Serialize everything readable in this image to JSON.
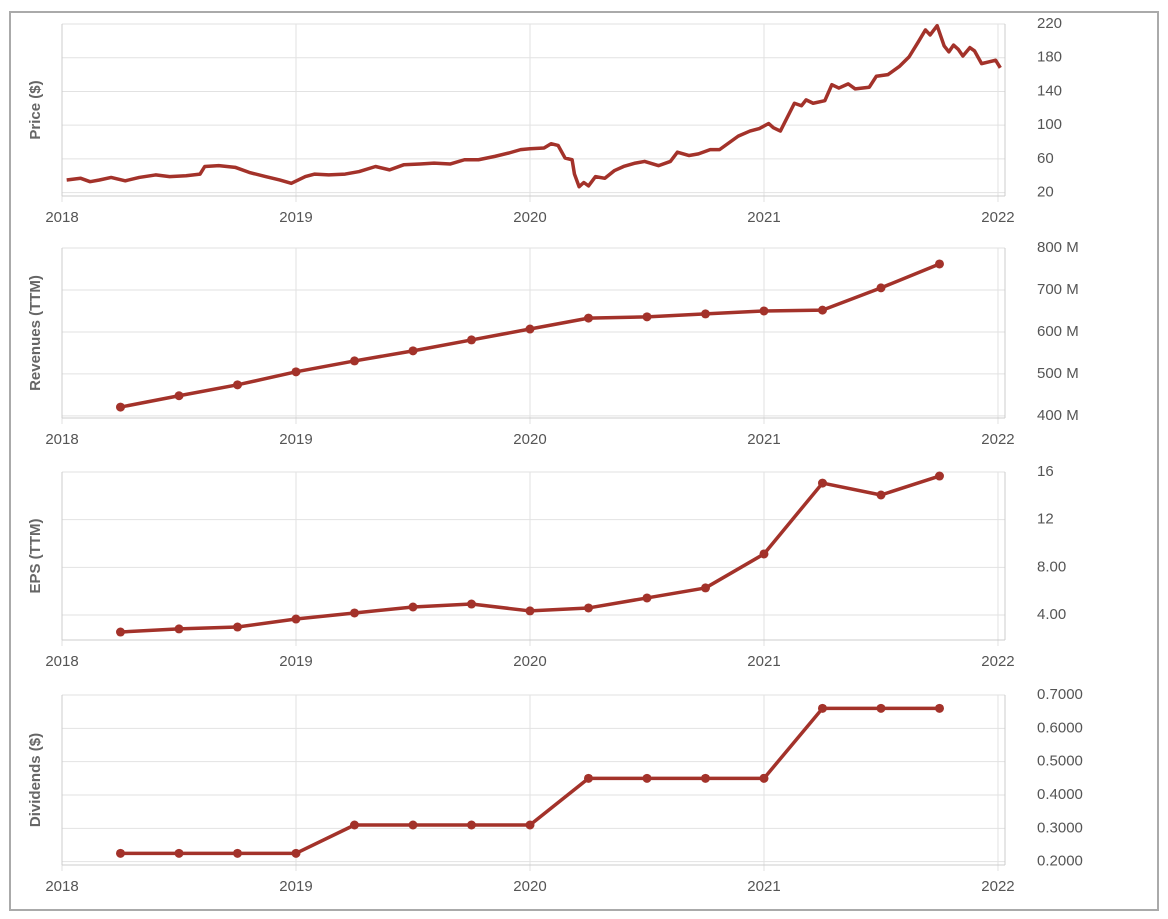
{
  "chart_data": [
    {
      "type": "line",
      "y_label": "Price ($)",
      "color": "#a3322a",
      "markers": false,
      "grid": true,
      "xlim": [
        2018,
        2022.03
      ],
      "xticks": [
        2018,
        2019,
        2020,
        2021,
        2022
      ],
      "ylim": [
        16,
        220
      ],
      "yticks": [
        20,
        60,
        100,
        140,
        180,
        220
      ],
      "x": [
        2018.02,
        2018.08,
        2018.12,
        2018.16,
        2018.21,
        2018.27,
        2018.33,
        2018.4,
        2018.46,
        2018.53,
        2018.59,
        2018.61,
        2018.67,
        2018.74,
        2018.8,
        2018.87,
        2018.93,
        2018.98,
        2019.04,
        2019.08,
        2019.14,
        2019.21,
        2019.27,
        2019.34,
        2019.4,
        2019.46,
        2019.53,
        2019.59,
        2019.66,
        2019.72,
        2019.78,
        2019.85,
        2019.91,
        2019.96,
        2020.0,
        2020.06,
        2020.09,
        2020.12,
        2020.15,
        2020.18,
        2020.19,
        2020.21,
        2020.23,
        2020.25,
        2020.28,
        2020.32,
        2020.36,
        2020.4,
        2020.45,
        2020.49,
        2020.55,
        2020.6,
        2020.63,
        2020.68,
        2020.72,
        2020.77,
        2020.81,
        2020.85,
        2020.89,
        2020.94,
        2020.98,
        2021.02,
        2021.04,
        2021.07,
        2021.13,
        2021.16,
        2021.18,
        2021.21,
        2021.26,
        2021.29,
        2021.32,
        2021.36,
        2021.39,
        2021.45,
        2021.48,
        2021.53,
        2021.58,
        2021.62,
        2021.66,
        2021.69,
        2021.71,
        2021.74,
        2021.77,
        2021.79,
        2021.81,
        2021.83,
        2021.85,
        2021.88,
        2021.9,
        2021.93,
        2021.96,
        2021.99,
        2022.01
      ],
      "values": [
        35,
        37,
        33,
        35,
        38,
        34,
        38,
        41,
        39,
        40,
        42,
        51,
        52,
        50,
        44,
        39,
        35,
        31,
        39,
        42,
        41,
        42,
        45,
        51,
        47,
        53,
        54,
        55,
        54,
        59,
        59,
        63,
        67,
        71,
        72,
        73,
        78,
        76,
        61,
        59,
        42,
        27,
        32,
        28,
        39,
        37,
        46,
        51,
        55,
        57,
        52,
        57,
        68,
        64,
        66,
        71,
        71,
        79,
        87,
        93,
        96,
        102,
        97,
        93,
        126,
        123,
        130,
        126,
        129,
        148,
        144,
        149,
        143,
        145,
        158,
        160,
        170,
        181,
        199,
        213,
        207,
        218,
        194,
        187,
        195,
        190,
        182,
        192,
        188,
        173,
        175,
        177,
        168
      ]
    },
    {
      "type": "line",
      "y_label": "Revenues (TTM)",
      "color": "#a3322a",
      "markers": true,
      "grid": true,
      "xlim": [
        2018,
        2022.03
      ],
      "xticks": [
        2018,
        2019,
        2020,
        2021,
        2022
      ],
      "ylim": [
        395,
        800
      ],
      "yticks": [
        {
          "value": 400,
          "label": "400 M"
        },
        {
          "value": 500,
          "label": "500 M"
        },
        {
          "value": 600,
          "label": "600 M"
        },
        {
          "value": 700,
          "label": "700 M"
        },
        {
          "value": 800,
          "label": "800 M"
        }
      ],
      "x": [
        2018.25,
        2018.5,
        2018.75,
        2019,
        2019.25,
        2019.5,
        2019.75,
        2020,
        2020.25,
        2020.5,
        2020.75,
        2021,
        2021.25,
        2021.5,
        2021.75
      ],
      "values": [
        421,
        448,
        474,
        505,
        531,
        555,
        581,
        607,
        633,
        636,
        643,
        650,
        652,
        705,
        762
      ]
    },
    {
      "type": "line",
      "y_label": "EPS (TTM)",
      "color": "#a3322a",
      "markers": true,
      "grid": true,
      "xlim": [
        2018,
        2022.03
      ],
      "xticks": [
        2018,
        2019,
        2020,
        2021,
        2022
      ],
      "ylim": [
        1.9,
        16
      ],
      "yticks": [
        {
          "value": 4,
          "label": "4.00"
        },
        {
          "value": 8,
          "label": "8.00"
        },
        12,
        16
      ],
      "x": [
        2018.25,
        2018.5,
        2018.75,
        2019,
        2019.25,
        2019.5,
        2019.75,
        2020,
        2020.25,
        2020.5,
        2020.75,
        2021,
        2021.25,
        2021.5,
        2021.75
      ],
      "values": [
        2.57,
        2.83,
        2.99,
        3.66,
        4.17,
        4.67,
        4.92,
        4.34,
        4.59,
        5.43,
        6.27,
        9.12,
        15.07,
        14.07,
        15.66
      ]
    },
    {
      "type": "line",
      "y_label": "Dividends ($)",
      "color": "#a3322a",
      "markers": true,
      "grid": true,
      "xlim": [
        2018,
        2022.03
      ],
      "xticks": [
        2018,
        2019,
        2020,
        2021,
        2022
      ],
      "ylim": [
        0.19,
        0.7
      ],
      "yticks": [
        {
          "value": 0.2,
          "label": "0.2000"
        },
        {
          "value": 0.3,
          "label": "0.3000"
        },
        {
          "value": 0.4,
          "label": "0.4000"
        },
        {
          "value": 0.5,
          "label": "0.5000"
        },
        {
          "value": 0.6,
          "label": "0.6000"
        },
        {
          "value": 0.7,
          "label": "0.7000"
        }
      ],
      "x": [
        2018.25,
        2018.5,
        2018.75,
        2019,
        2019.25,
        2019.5,
        2019.75,
        2020,
        2020.25,
        2020.5,
        2020.75,
        2021,
        2021.25,
        2021.5,
        2021.75
      ],
      "values": [
        0.225,
        0.225,
        0.225,
        0.225,
        0.31,
        0.31,
        0.31,
        0.31,
        0.45,
        0.45,
        0.45,
        0.45,
        0.66,
        0.66,
        0.66
      ]
    }
  ]
}
